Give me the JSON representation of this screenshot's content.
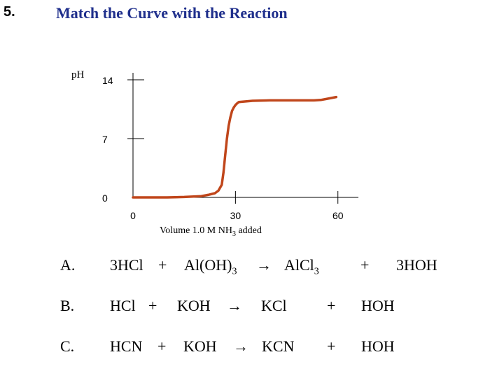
{
  "question": {
    "number": "5.",
    "title": "Match the Curve with the Reaction"
  },
  "chart_data": {
    "type": "line",
    "ylabel": "pH",
    "xlabel": "Volume 1.0 M NH",
    "xlabel_subscript": "3",
    "xlabel_suffix": " added",
    "y_ticks": [
      "14",
      "7",
      "0"
    ],
    "y_tick_values": [
      14,
      7,
      0
    ],
    "x_ticks": [
      "0",
      "30",
      "60"
    ],
    "x_tick_values": [
      0,
      30,
      60
    ],
    "xlim": [
      0,
      66
    ],
    "ylim": [
      0,
      14
    ],
    "grid": false,
    "line_color": "#c0461b",
    "series": [
      {
        "x": [
          0,
          5,
          10,
          15,
          20,
          22,
          24,
          25,
          26,
          26.5,
          27,
          27.5,
          28,
          28.5,
          29,
          29.5,
          30,
          30.5,
          31,
          35,
          40,
          45,
          50,
          53,
          55,
          57,
          59.5
        ],
        "y": [
          0,
          0,
          0,
          0.05,
          0.15,
          0.3,
          0.5,
          0.8,
          1.5,
          3,
          5,
          7,
          8.5,
          9.5,
          10.3,
          10.7,
          11.0,
          11.2,
          11.35,
          11.5,
          11.55,
          11.55,
          11.55,
          11.55,
          11.6,
          11.75,
          11.95
        ]
      }
    ]
  },
  "reactions": [
    {
      "label": "A.",
      "reactant1": "3HCl",
      "plus1": "+",
      "reactant2_pre": "Al(OH)",
      "reactant2_sub": "3",
      "arrow": "→",
      "product1_pre": "AlCl",
      "product1_sub": "3",
      "plus2": "+",
      "product2": "3HOH"
    },
    {
      "label": "B.",
      "reactant1": "HCl",
      "plus1": "+",
      "reactant2_pre": "KOH",
      "reactant2_sub": "",
      "arrow": "→",
      "product1_pre": "KCl",
      "product1_sub": "",
      "plus2": "+",
      "product2": "HOH"
    },
    {
      "label": "C.",
      "reactant1": "HCN",
      "plus1": "+",
      "reactant2_pre": "KOH",
      "reactant2_sub": "",
      "arrow": "→",
      "product1_pre": "KCN",
      "product1_sub": "",
      "plus2": "+",
      "product2": "HOH"
    }
  ]
}
